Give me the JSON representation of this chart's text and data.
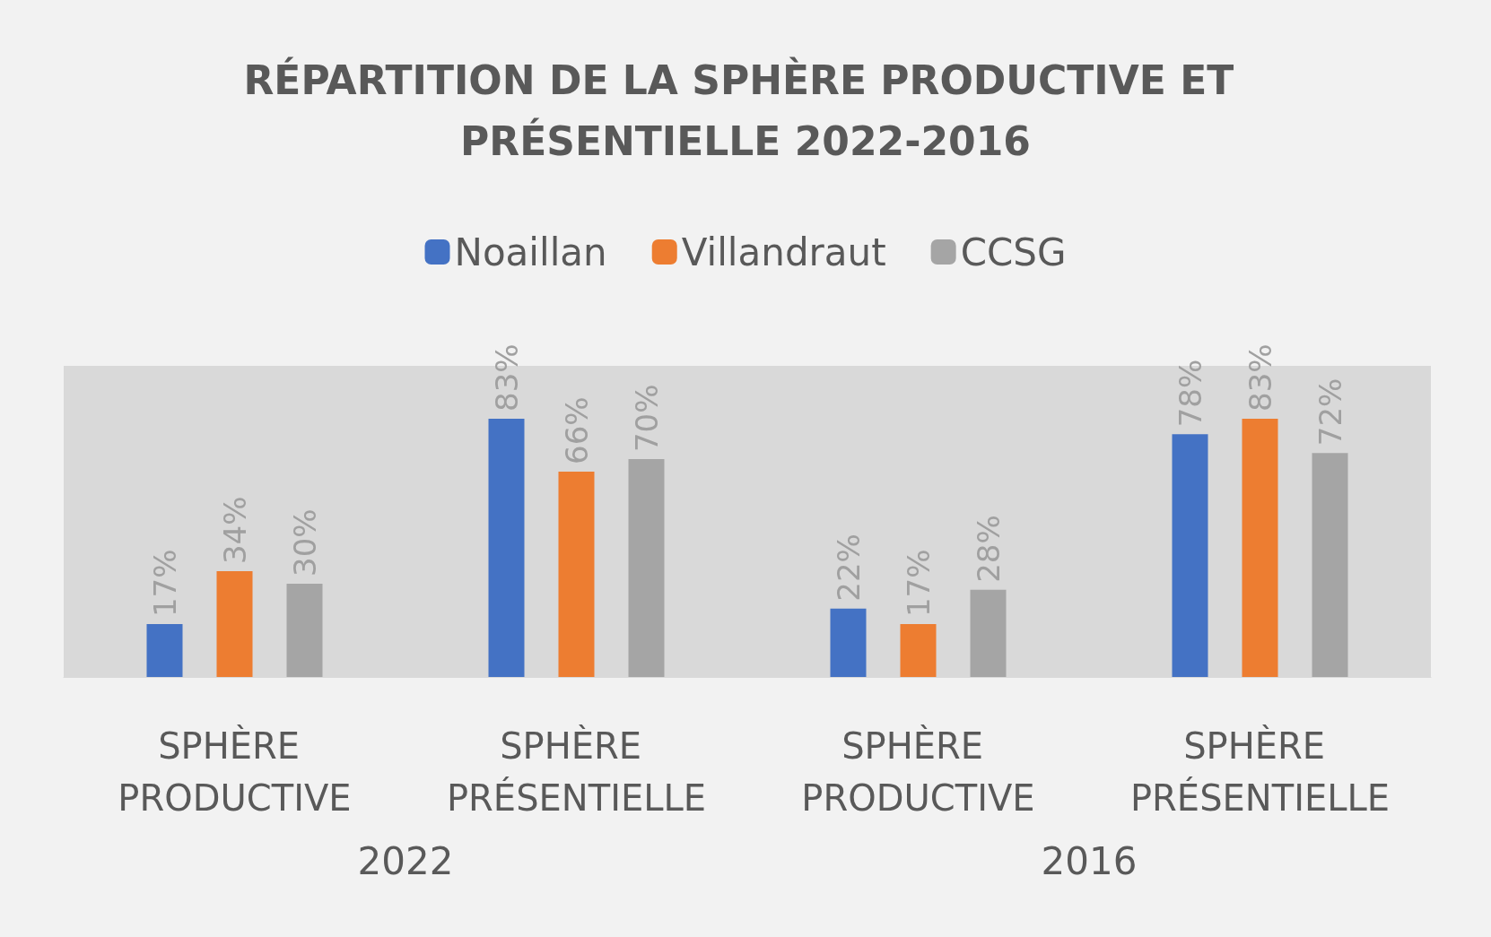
{
  "chart_data": {
    "type": "bar",
    "title": "RÉPARTITION DE LA SPHÈRE PRODUCTIVE ET PRÉSENTIELLE 2022-2016",
    "categories": [
      "SPHÈRE PRODUCTIVE",
      "SPHÈRE PRÉSENTIELLE",
      "SPHÈRE PRODUCTIVE",
      "SPHÈRE PRÉSENTIELLE"
    ],
    "series": [
      {
        "name": "Noaillan",
        "color": "#4472c4",
        "values": [
          17,
          83,
          22,
          78
        ],
        "value_labels": [
          "17%",
          "83%",
          "22%",
          "78%"
        ]
      },
      {
        "name": "Villandraut",
        "color": "#ed7d31",
        "values": [
          34,
          66,
          17,
          83
        ],
        "value_labels": [
          "34%",
          "66%",
          "17%",
          "83%"
        ]
      },
      {
        "name": "CCSG",
        "color": "#a5a5a5",
        "values": [
          30,
          70,
          28,
          72
        ],
        "value_labels": [
          "30%",
          "70%",
          "28%",
          "72%"
        ]
      }
    ],
    "annotations": [
      "2022",
      "2016"
    ],
    "legend": "top",
    "grid": false
  }
}
